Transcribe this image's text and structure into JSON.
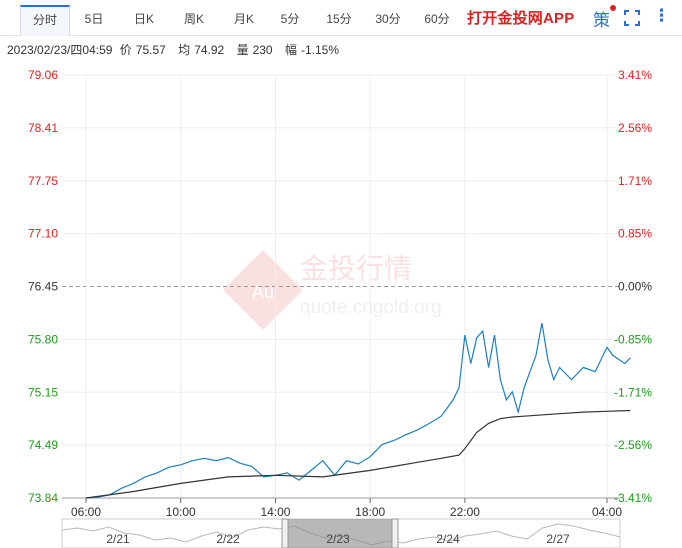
{
  "tabs": [
    {
      "label": "分时",
      "active": true
    },
    {
      "label": "5日"
    },
    {
      "label": "日K"
    },
    {
      "label": "周K"
    },
    {
      "label": "月K"
    },
    {
      "label": "5分"
    },
    {
      "label": "15分"
    },
    {
      "label": "30分"
    },
    {
      "label": "60分"
    }
  ],
  "promo_label": "打开金投网APP",
  "ce_icon_label": "策",
  "more_icon_label": "⋮",
  "quote": {
    "datetime": "2023/02/23/四04:59",
    "price_label": "价",
    "price": "75.57",
    "avg_label": "均",
    "avg": "74.92",
    "volume_label": "量",
    "volume": "230",
    "change_label": "幅",
    "change": "-1.15%"
  },
  "watermark": {
    "logo_text": "Au",
    "brand": "金投行情",
    "url": "quote.cngold.org"
  },
  "colors": {
    "up": "#e02020",
    "down": "#1a9e1a",
    "price_line": "#1c7fc4",
    "avg_line": "#333333",
    "baseline": "#999999",
    "accent": "#2b6fd6"
  },
  "chart_data": {
    "type": "line",
    "prev_close": 76.45,
    "ylim": [
      73.84,
      79.06
    ],
    "y_ticks_left": [
      "79.06",
      "78.41",
      "77.75",
      "77.10",
      "76.45",
      "75.80",
      "75.15",
      "74.49",
      "73.84"
    ],
    "y_ticks_right": [
      "3.41%",
      "2.56%",
      "1.71%",
      "0.85%",
      "0.00%",
      "-0.85%",
      "-1.71%",
      "-2.56%",
      "-3.41%"
    ],
    "x_ticks": [
      "06:00",
      "10:00",
      "14:00",
      "18:00",
      "22:00",
      "04:00"
    ],
    "series": [
      {
        "key": "price",
        "x": [
          "06:00",
          "06:30",
          "07:00",
          "07:30",
          "08:00",
          "08:30",
          "09:00",
          "09:30",
          "10:00",
          "10:30",
          "11:00",
          "11:30",
          "12:00",
          "12:30",
          "13:00",
          "13:30",
          "14:00",
          "14:30",
          "15:00",
          "15:30",
          "16:00",
          "16:30",
          "17:00",
          "17:30",
          "18:00",
          "18:30",
          "19:00",
          "19:30",
          "20:00",
          "20:30",
          "21:00",
          "21:15",
          "21:30",
          "21:45",
          "22:00",
          "22:15",
          "22:30",
          "22:45",
          "23:00",
          "23:15",
          "23:30",
          "23:45",
          "00:00",
          "00:15",
          "00:30",
          "00:45",
          "01:00",
          "01:15",
          "01:30",
          "01:45",
          "02:00",
          "02:30",
          "03:00",
          "03:30",
          "04:00",
          "04:15",
          "04:30",
          "04:45",
          "04:59"
        ],
        "values": [
          73.84,
          73.85,
          73.88,
          73.96,
          74.02,
          74.1,
          74.15,
          74.22,
          74.25,
          74.3,
          74.33,
          74.3,
          74.34,
          74.27,
          74.23,
          74.1,
          74.12,
          74.15,
          74.06,
          74.18,
          74.3,
          74.12,
          74.3,
          74.26,
          74.35,
          74.5,
          74.55,
          74.62,
          74.68,
          74.76,
          74.85,
          74.95,
          75.05,
          75.2,
          75.85,
          75.5,
          75.82,
          75.9,
          75.45,
          75.85,
          75.3,
          75.05,
          75.15,
          74.9,
          75.2,
          75.4,
          75.6,
          76.0,
          75.55,
          75.3,
          75.45,
          75.3,
          75.45,
          75.4,
          75.7,
          75.6,
          75.55,
          75.5,
          75.57
        ]
      },
      {
        "key": "average",
        "x": [
          "06:00",
          "08:00",
          "10:00",
          "12:00",
          "14:00",
          "16:00",
          "18:00",
          "19:00",
          "20:00",
          "21:00",
          "21:45",
          "22:00",
          "22:30",
          "23:00",
          "23:30",
          "00:00",
          "00:30",
          "01:00",
          "02:00",
          "03:00",
          "04:00",
          "04:59"
        ],
        "values": [
          73.84,
          73.92,
          74.02,
          74.1,
          74.12,
          74.1,
          74.18,
          74.23,
          74.28,
          74.33,
          74.37,
          74.45,
          74.65,
          74.76,
          74.82,
          74.84,
          74.85,
          74.86,
          74.88,
          74.9,
          74.91,
          74.92
        ]
      }
    ]
  },
  "navigator": {
    "date_labels": [
      "2/21",
      "2/22",
      "2/23",
      "2/24",
      "2/27"
    ],
    "selected_label": "2/23"
  }
}
